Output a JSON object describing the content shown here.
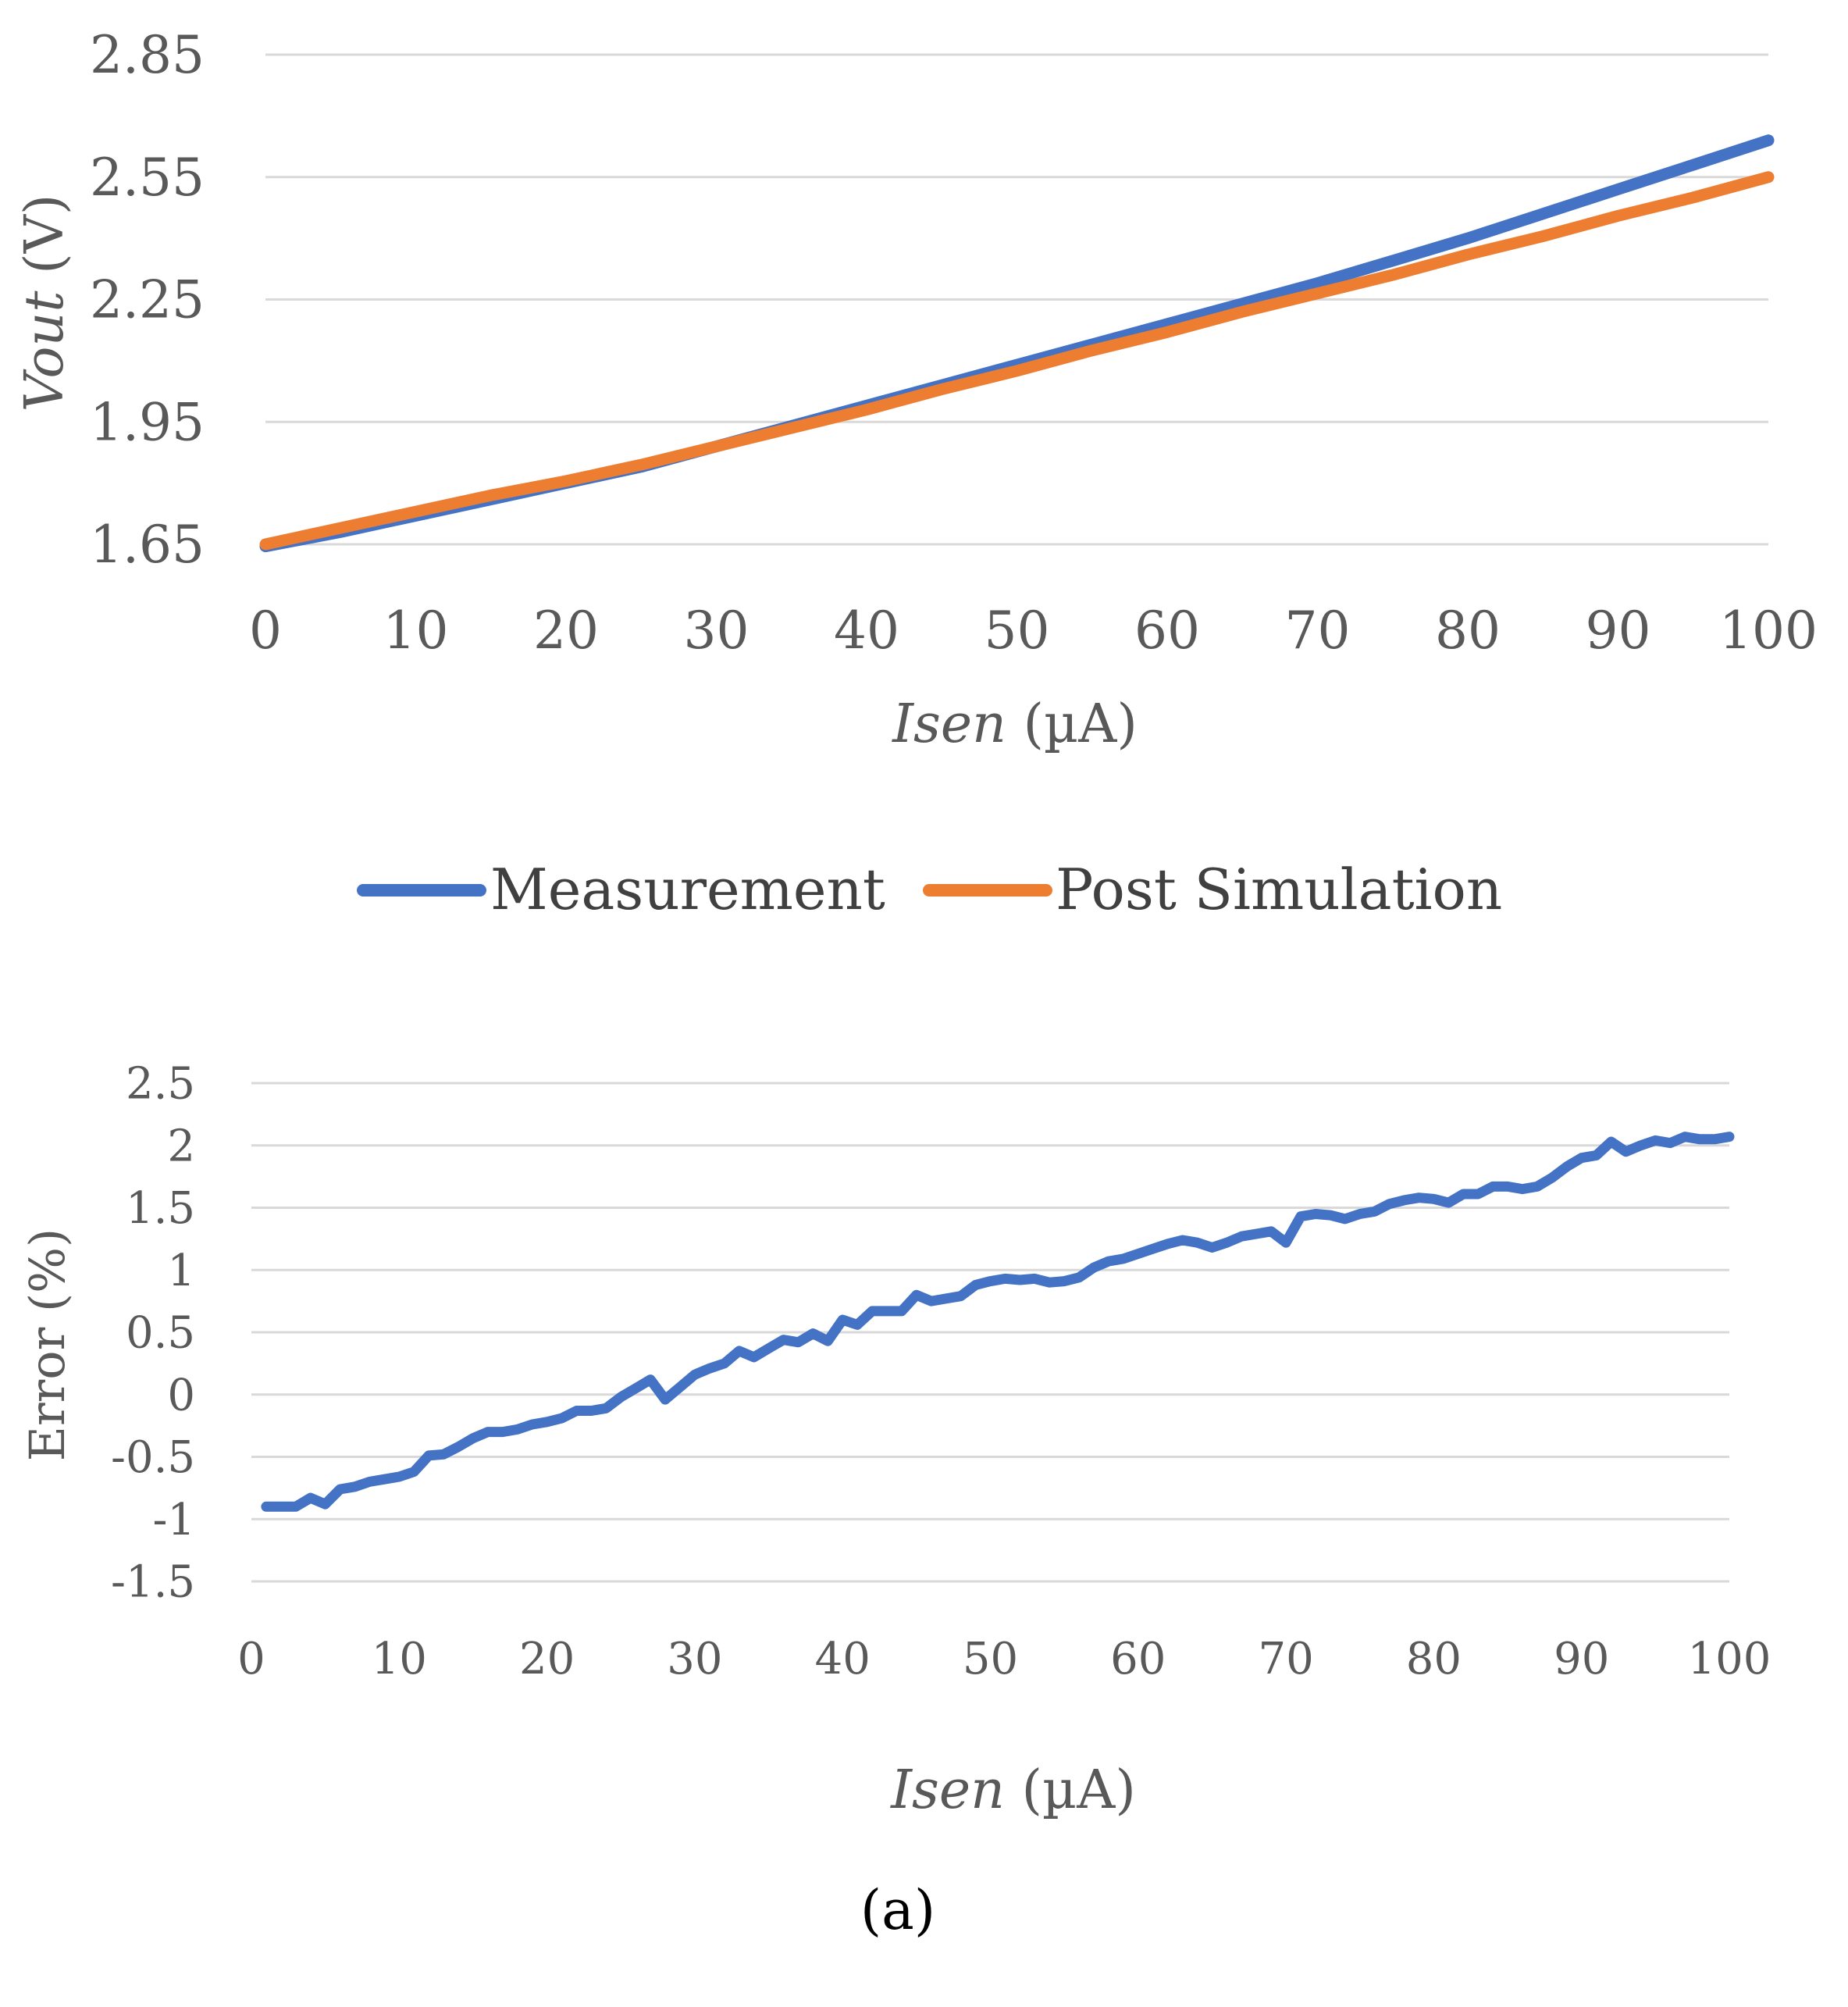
{
  "chart_data": [
    {
      "type": "line",
      "title": "",
      "xlabel_var": "Isen",
      "xlabel_unit": "(µA)",
      "ylabel_var": "Vout",
      "ylabel_unit": "(V)",
      "xlim": [
        0,
        100
      ],
      "ylim": [
        1.65,
        2.85
      ],
      "x_ticks": [
        "0",
        "10",
        "20",
        "30",
        "40",
        "50",
        "60",
        "70",
        "80",
        "90",
        "100"
      ],
      "y_ticks": [
        "1.65",
        "1.95",
        "2.25",
        "2.55",
        "2.85"
      ],
      "grid": true,
      "legend_position": "bottom",
      "series": [
        {
          "name": "Measurement",
          "color": "#4472C4",
          "x": [
            0,
            5,
            10,
            15,
            20,
            25,
            30,
            35,
            40,
            45,
            50,
            55,
            60,
            65,
            70,
            75,
            80,
            85,
            90,
            95,
            100
          ],
          "y": [
            1.645,
            1.68,
            1.72,
            1.76,
            1.8,
            1.84,
            1.89,
            1.94,
            1.99,
            2.04,
            2.09,
            2.14,
            2.19,
            2.24,
            2.29,
            2.345,
            2.4,
            2.46,
            2.52,
            2.58,
            2.64
          ]
        },
        {
          "name": "Post Simulation",
          "color": "#ED7D31",
          "x": [
            0,
            5,
            10,
            15,
            20,
            25,
            30,
            35,
            40,
            45,
            50,
            55,
            60,
            65,
            70,
            75,
            80,
            85,
            90,
            95,
            100
          ],
          "y": [
            1.65,
            1.69,
            1.73,
            1.77,
            1.805,
            1.845,
            1.89,
            1.935,
            1.98,
            2.03,
            2.075,
            2.125,
            2.17,
            2.22,
            2.265,
            2.31,
            2.36,
            2.405,
            2.455,
            2.5,
            2.55
          ]
        }
      ]
    },
    {
      "type": "line",
      "title": "",
      "xlabel_var": "Isen",
      "xlabel_unit": "(µA)",
      "ylabel": "Error (%)",
      "xlim": [
        0,
        100
      ],
      "ylim": [
        -1.5,
        2.5
      ],
      "x_ticks": [
        "0",
        "10",
        "20",
        "30",
        "40",
        "50",
        "60",
        "70",
        "80",
        "90",
        "100"
      ],
      "y_ticks": [
        "-1.5",
        "-1",
        "-0.5",
        "0",
        "0.5",
        "1",
        "1.5",
        "2",
        "2.5"
      ],
      "grid": true,
      "series": [
        {
          "name": "Error",
          "color": "#4472C4",
          "x": [
            1,
            2,
            3,
            4,
            5,
            6,
            7,
            8,
            9,
            10,
            11,
            12,
            13,
            14,
            15,
            16,
            17,
            18,
            19,
            20,
            21,
            22,
            23,
            24,
            25,
            26,
            27,
            28,
            29,
            30,
            31,
            32,
            33,
            34,
            35,
            36,
            37,
            38,
            39,
            40,
            41,
            42,
            43,
            44,
            45,
            46,
            47,
            48,
            49,
            50,
            51,
            52,
            53,
            54,
            55,
            56,
            57,
            58,
            59,
            60,
            61,
            62,
            63,
            64,
            65,
            66,
            67,
            68,
            69,
            70,
            71,
            72,
            73,
            74,
            75,
            76,
            77,
            78,
            79,
            80,
            81,
            82,
            83,
            84,
            85,
            86,
            87,
            88,
            89,
            90,
            91,
            92,
            93,
            94,
            95,
            96,
            97,
            98,
            99,
            100
          ],
          "values": [
            -0.9,
            -0.9,
            -0.9,
            -0.83,
            -0.88,
            -0.76,
            -0.74,
            -0.7,
            -0.68,
            -0.66,
            -0.62,
            -0.49,
            -0.48,
            -0.42,
            -0.35,
            -0.3,
            -0.3,
            -0.28,
            -0.24,
            -0.22,
            -0.19,
            -0.13,
            -0.13,
            -0.11,
            -0.02,
            0.05,
            0.12,
            -0.04,
            0.06,
            0.16,
            0.21,
            0.25,
            0.35,
            0.3,
            0.37,
            0.44,
            0.42,
            0.49,
            0.43,
            0.6,
            0.56,
            0.67,
            0.67,
            0.67,
            0.8,
            0.75,
            0.77,
            0.79,
            0.88,
            0.91,
            0.93,
            0.92,
            0.93,
            0.9,
            0.91,
            0.94,
            1.02,
            1.07,
            1.09,
            1.13,
            1.17,
            1.21,
            1.24,
            1.22,
            1.18,
            1.22,
            1.27,
            1.29,
            1.31,
            1.22,
            1.43,
            1.45,
            1.44,
            1.41,
            1.45,
            1.47,
            1.53,
            1.56,
            1.58,
            1.57,
            1.54,
            1.61,
            1.61,
            1.67,
            1.67,
            1.65,
            1.67,
            1.74,
            1.83,
            1.9,
            1.92,
            2.03,
            1.95,
            2.0,
            2.04,
            2.02,
            2.07,
            2.05,
            2.05,
            2.07
          ]
        }
      ]
    }
  ],
  "legend": {
    "items": [
      {
        "label": "Measurement",
        "color": "#4472C4"
      },
      {
        "label": "Post Simulation",
        "color": "#ED7D31"
      }
    ]
  },
  "caption": "(a)"
}
